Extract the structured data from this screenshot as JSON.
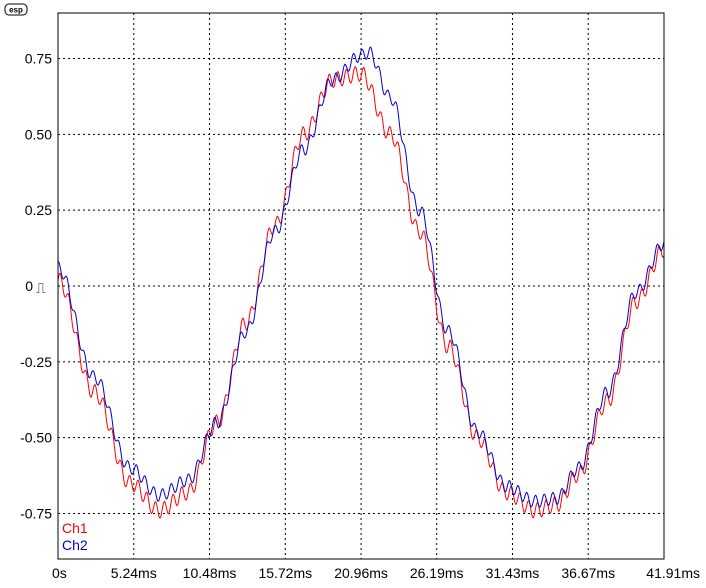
{
  "logo": {
    "text": "esp"
  },
  "trigger_symbol": "⎍",
  "chart_data": {
    "type": "line",
    "title": "",
    "xlabel": "",
    "ylabel": "",
    "x_unit": "ms",
    "xlim": [
      0,
      41.91
    ],
    "ylim": [
      -0.9,
      0.9
    ],
    "grid": true,
    "legend_position": "bottom-left",
    "x_ticks": [
      {
        "value": 0,
        "label": "0s"
      },
      {
        "value": 5.24,
        "label": "5.24ms"
      },
      {
        "value": 10.48,
        "label": "10.48ms"
      },
      {
        "value": 15.72,
        "label": "15.72ms"
      },
      {
        "value": 20.96,
        "label": "20.96ms"
      },
      {
        "value": 26.19,
        "label": "26.19ms"
      },
      {
        "value": 31.43,
        "label": "31.43ms"
      },
      {
        "value": 36.67,
        "label": "36.67ms"
      },
      {
        "value": 41.91,
        "label": "41.91ms"
      }
    ],
    "y_ticks": [
      {
        "value": 0.75,
        "label": "0.75"
      },
      {
        "value": 0.5,
        "label": "0.50"
      },
      {
        "value": 0.25,
        "label": "0.25"
      },
      {
        "value": 0,
        "label": "0"
      },
      {
        "value": -0.25,
        "label": "-0.25"
      },
      {
        "value": -0.5,
        "label": "-0.50"
      },
      {
        "value": -0.75,
        "label": "-0.75"
      }
    ],
    "series": [
      {
        "name": "Ch1",
        "color": "#ff0000",
        "ripple_pk_pk": 0.05,
        "x": [
          0,
          2.5,
          5,
          7,
          9,
          11,
          13,
          15,
          17,
          19,
          20.96,
          23,
          25,
          27,
          29,
          31,
          33,
          34.5,
          36,
          38,
          40,
          41.91
        ],
        "y": [
          0.02,
          -0.35,
          -0.65,
          -0.74,
          -0.68,
          -0.45,
          -0.12,
          0.2,
          0.5,
          0.68,
          0.7,
          0.5,
          0.18,
          -0.2,
          -0.5,
          -0.68,
          -0.74,
          -0.72,
          -0.62,
          -0.38,
          -0.05,
          0.12
        ]
      },
      {
        "name": "Ch2",
        "color": "#0000cc",
        "ripple_pk_pk": 0.04,
        "x": [
          0,
          2.5,
          5,
          7,
          9,
          11,
          13,
          15,
          17,
          19,
          20.96,
          21.5,
          23,
          25,
          27,
          29,
          31,
          33,
          34.5,
          36,
          38,
          40,
          41.91
        ],
        "y": [
          0.06,
          -0.3,
          -0.6,
          -0.69,
          -0.64,
          -0.45,
          -0.15,
          0.18,
          0.45,
          0.68,
          0.76,
          0.77,
          0.62,
          0.25,
          -0.15,
          -0.48,
          -0.66,
          -0.71,
          -0.7,
          -0.6,
          -0.35,
          -0.02,
          0.14
        ]
      }
    ]
  }
}
